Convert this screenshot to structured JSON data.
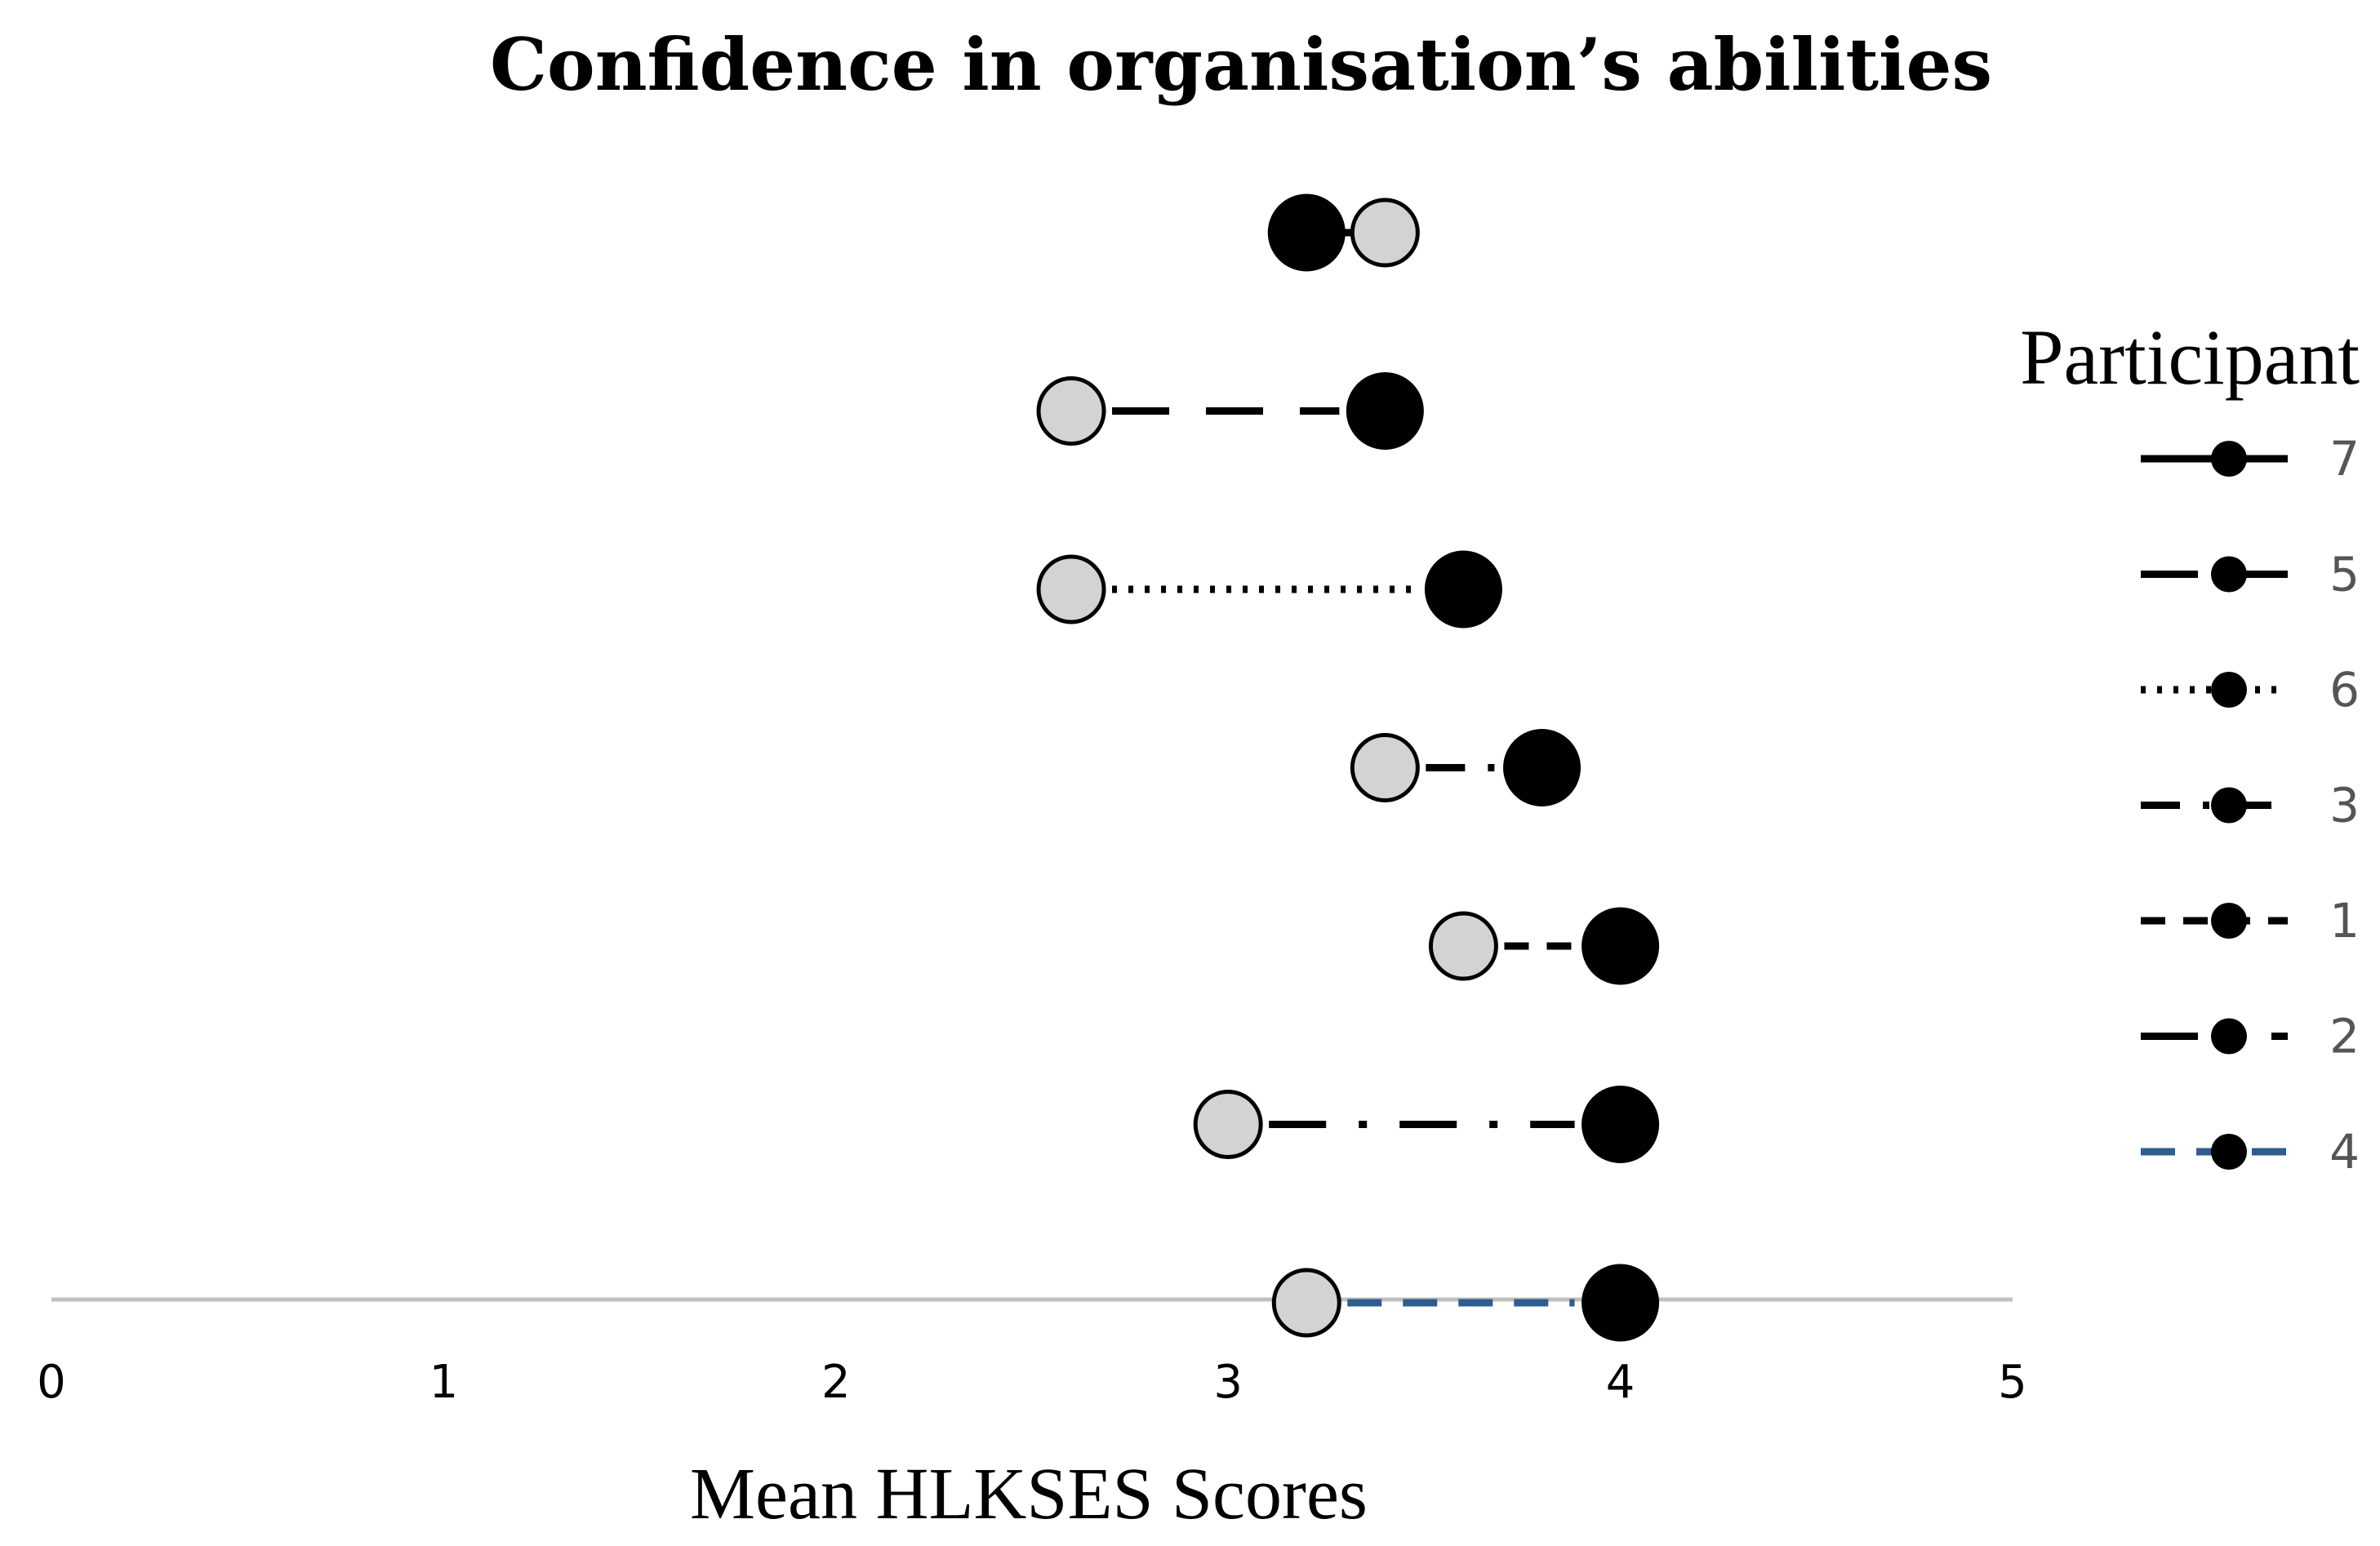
{
  "chart_data": {
    "type": "scatter",
    "title": "Confidence in organisation’s abilities",
    "xlabel": "Mean HLKSES Scores",
    "ylabel": "",
    "xlim": [
      0,
      5
    ],
    "xticks": [
      "0",
      "1",
      "2",
      "3",
      "4",
      "5"
    ],
    "grid": false,
    "legend": {
      "title": "Participant",
      "placement": "right",
      "entries": [
        "7",
        "5",
        "6",
        "3",
        "1",
        "2",
        "4"
      ]
    },
    "series": [
      {
        "name": "7",
        "pre": 3.4,
        "post": 3.2,
        "line_style": "solid",
        "line_color": "#000000"
      },
      {
        "name": "5",
        "pre": 2.6,
        "post": 3.4,
        "line_style": "long-dash",
        "line_color": "#000000"
      },
      {
        "name": "6",
        "pre": 2.6,
        "post": 3.6,
        "line_style": "dotted",
        "line_color": "#000000"
      },
      {
        "name": "3",
        "pre": 3.4,
        "post": 3.8,
        "line_style": "dash-dot",
        "line_color": "#000000"
      },
      {
        "name": "1",
        "pre": 3.6,
        "post": 4.0,
        "line_style": "short-dash",
        "line_color": "#000000"
      },
      {
        "name": "2",
        "pre": 3.0,
        "post": 4.0,
        "line_style": "long-dash-dot",
        "line_color": "#000000"
      },
      {
        "name": "4",
        "pre": 3.2,
        "post": 4.0,
        "line_style": "dashed",
        "line_color": "#2e5d8e"
      }
    ],
    "colors": {
      "pre_marker_fill": "#d3d3d3",
      "post_marker_fill": "#000000",
      "axis_line": "#c0c0c0"
    }
  }
}
